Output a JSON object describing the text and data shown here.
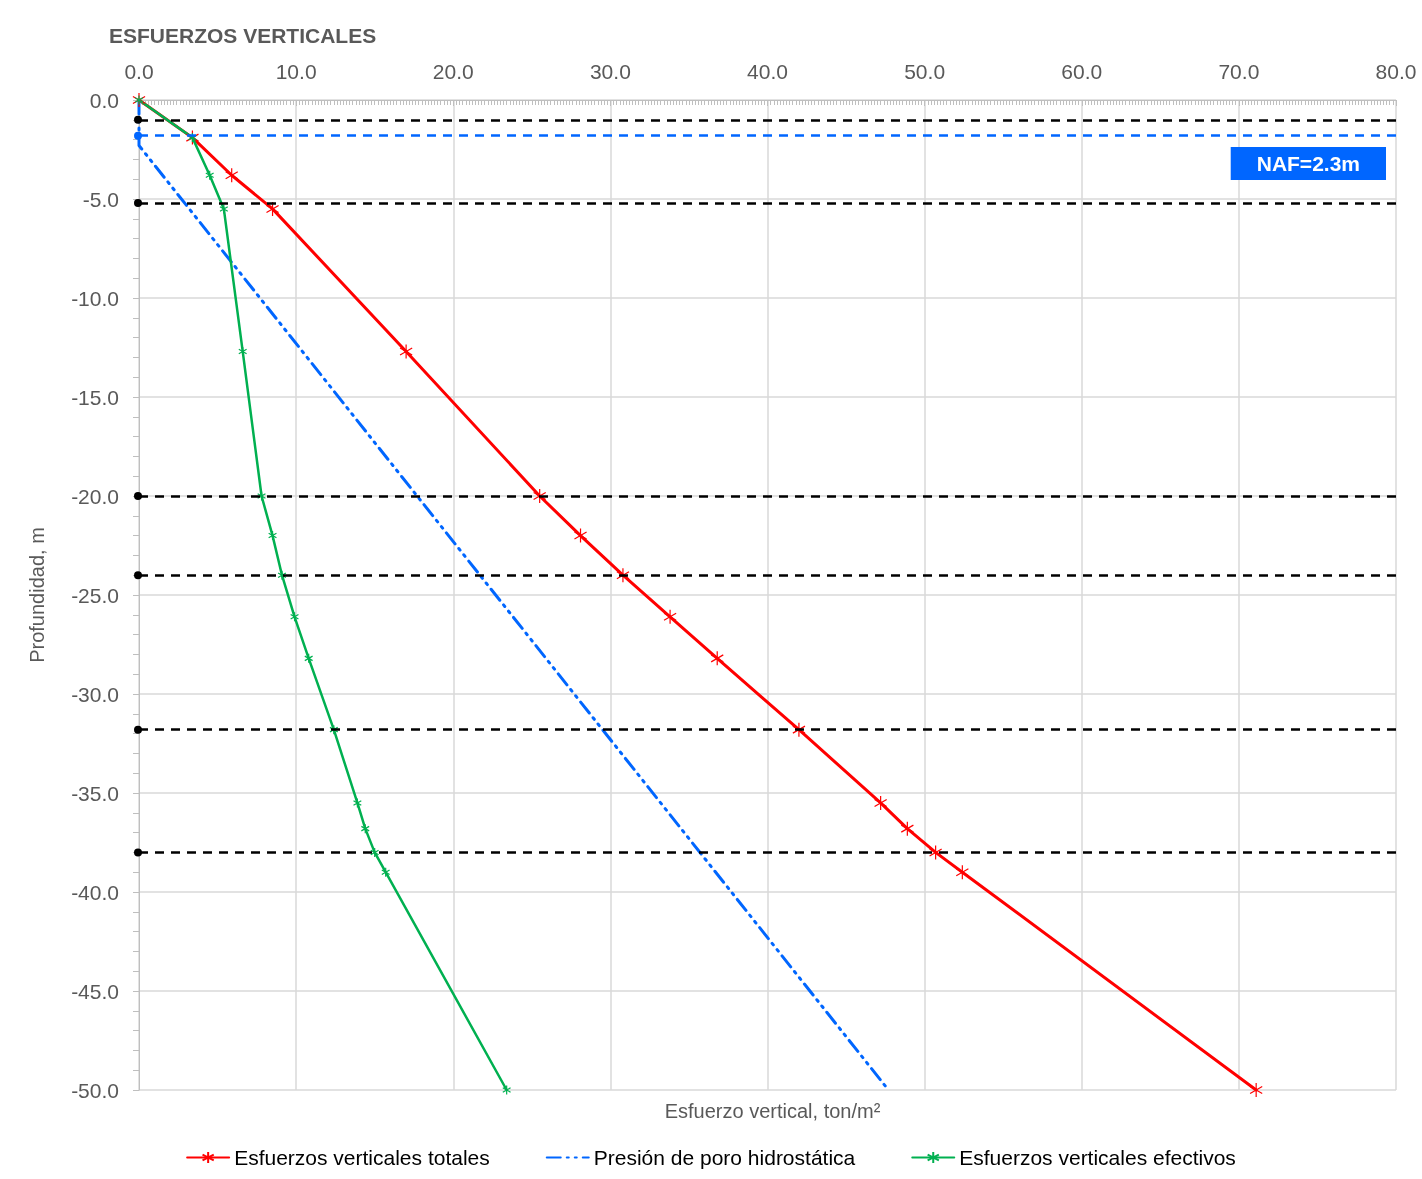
{
  "chart_data": {
    "type": "line",
    "title": "ESFUERZOS VERTICALES",
    "xlabel": "Esfuerzo vertical, ton/m²",
    "ylabel": "Profundidad, m",
    "xlim": [
      0,
      80
    ],
    "xticks": [
      {
        "value": 0,
        "label": "0.0"
      },
      {
        "value": 10,
        "label": "10.0"
      },
      {
        "value": 20,
        "label": "20.0"
      },
      {
        "value": 30,
        "label": "30.0"
      },
      {
        "value": 40,
        "label": "40.0"
      },
      {
        "value": 50,
        "label": "50.0"
      },
      {
        "value": 60,
        "label": "60.0"
      },
      {
        "value": 70,
        "label": "70.0"
      },
      {
        "value": 80,
        "label": "80.0"
      }
    ],
    "ylim": [
      -50,
      0
    ],
    "yticks": [
      {
        "value": -50,
        "label": "-50.0"
      },
      {
        "value": -45,
        "label": "-45.0"
      },
      {
        "value": -40,
        "label": "-40.0"
      },
      {
        "value": -35,
        "label": "-35.0"
      },
      {
        "value": -30,
        "label": "-30.0"
      },
      {
        "value": -25,
        "label": "-25.0"
      },
      {
        "value": -20,
        "label": "-20.0"
      },
      {
        "value": -15,
        "label": "-15.0"
      },
      {
        "value": -10,
        "label": "-10.0"
      },
      {
        "value": -5,
        "label": "-5.0"
      },
      {
        "value": 0,
        "label": "0.0"
      }
    ],
    "grid": true,
    "legend": "bottom",
    "series": [
      {
        "name": "Esfuerzos verticales totales",
        "color": "#ff0000",
        "marker": "cross",
        "line_style": "solid",
        "x": [
          0,
          3.4,
          5.9,
          8.5,
          17.0,
          25.5,
          28.1,
          30.8,
          33.8,
          36.8,
          42.0,
          47.2,
          48.9,
          50.7,
          52.4,
          71.1
        ],
        "values": [
          0,
          -1.9,
          -3.8,
          -5.5,
          -12.7,
          -20.0,
          -22.0,
          -24.0,
          -26.1,
          -28.2,
          -31.8,
          -35.5,
          -36.8,
          -38.0,
          -39.0,
          -50.0
        ]
      },
      {
        "name": "Presión de poro hidrostática",
        "color": "#0066ff",
        "marker": "none",
        "line_style": "dashed",
        "x": [
          0,
          0,
          47.7
        ],
        "values": [
          0,
          -2.3,
          -50.0
        ]
      },
      {
        "name": "Esfuerzos verticales efectivos",
        "color": "#00b050",
        "marker": "cross",
        "line_style": "solid",
        "x": [
          0,
          3.4,
          4.5,
          5.4,
          6.6,
          7.8,
          8.5,
          9.1,
          9.9,
          10.8,
          12.4,
          13.9,
          14.4,
          15.0,
          15.7,
          23.4
        ],
        "values": [
          0,
          -1.9,
          -3.8,
          -5.5,
          -12.7,
          -20.0,
          -22.0,
          -24.0,
          -26.1,
          -28.2,
          -31.8,
          -35.5,
          -36.8,
          -38.0,
          -39.0,
          -50.0
        ]
      }
    ],
    "ref_lines": [
      {
        "axis": "y",
        "value": -1.0,
        "color": "#000000",
        "line_style": "dashed"
      },
      {
        "axis": "y",
        "value": -1.8,
        "color": "#0066ff",
        "line_style": "dashed"
      },
      {
        "axis": "y",
        "value": -5.2,
        "color": "#000000",
        "line_style": "dashed"
      },
      {
        "axis": "y",
        "value": -20.0,
        "color": "#000000",
        "line_style": "dashed"
      },
      {
        "axis": "y",
        "value": -24.0,
        "color": "#000000",
        "line_style": "dashed"
      },
      {
        "axis": "y",
        "value": -31.8,
        "color": "#000000",
        "line_style": "dashed"
      },
      {
        "axis": "y",
        "value": -38.0,
        "color": "#000000",
        "line_style": "dashed"
      }
    ],
    "annotations": [
      "NAF=2.3m"
    ]
  }
}
